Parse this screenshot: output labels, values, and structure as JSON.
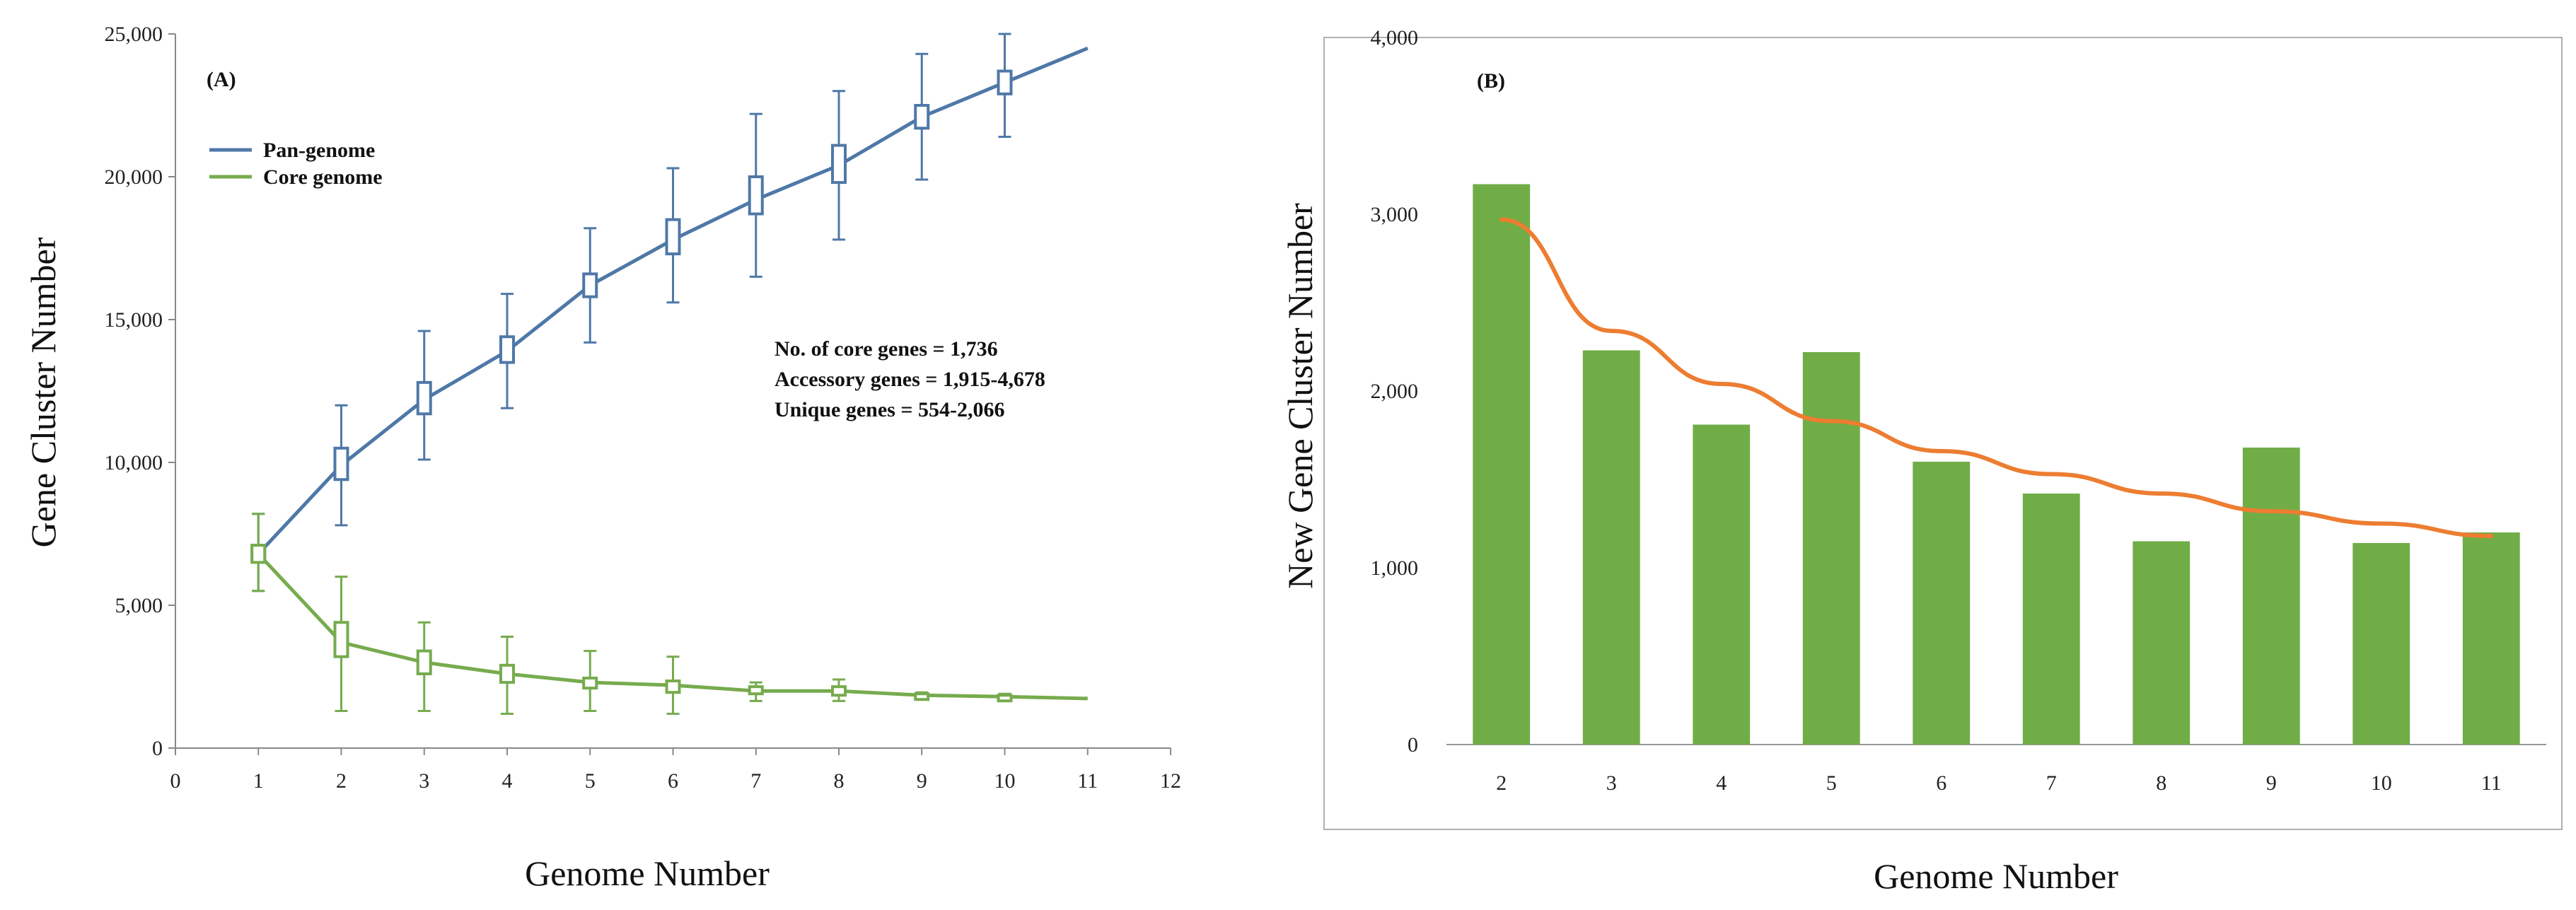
{
  "chart_data": [
    {
      "panel": "(A)",
      "type": "line",
      "title": "",
      "xlabel": "Genome Number",
      "ylabel": "Gene Cluster Number",
      "xlim": [
        0,
        12
      ],
      "ylim": [
        0,
        25000
      ],
      "x_ticks": [
        0,
        1,
        2,
        3,
        4,
        5,
        6,
        7,
        8,
        9,
        10,
        11,
        12
      ],
      "x_tick_labels": [
        "0",
        "1",
        "2",
        "3",
        "4",
        "5",
        "6",
        "7",
        "8",
        "9",
        "10",
        "11",
        "12"
      ],
      "y_ticks": [
        0,
        5000,
        10000,
        15000,
        20000,
        25000
      ],
      "y_tick_labels": [
        "0",
        "5,000",
        "10,000",
        "15,000",
        "20,000",
        "25,000"
      ],
      "x": [
        1,
        2,
        3,
        4,
        5,
        6,
        7,
        8,
        9,
        10,
        11
      ],
      "series": [
        {
          "name": "Pan-genome",
          "color": "#4f78a8",
          "values": [
            6800,
            9900,
            12200,
            13900,
            16200,
            17800,
            19200,
            20400,
            22100,
            23300,
            24500
          ],
          "box_low": [
            6600,
            9400,
            11700,
            13500,
            15800,
            17300,
            18700,
            19800,
            21700,
            22900,
            null
          ],
          "box_high": [
            7100,
            10500,
            12800,
            14400,
            16600,
            18500,
            20000,
            21100,
            22500,
            23700,
            null
          ],
          "whisker_low": [
            5500,
            7800,
            10100,
            11900,
            14200,
            15600,
            16500,
            17800,
            19900,
            21400,
            null
          ],
          "whisker_high": [
            8200,
            12000,
            14600,
            15900,
            18200,
            20300,
            22200,
            23000,
            24300,
            25000,
            null
          ]
        },
        {
          "name": "Core genome",
          "color": "#77ab4e",
          "values": [
            6800,
            3700,
            3000,
            2600,
            2300,
            2200,
            2000,
            2000,
            1850,
            1800,
            1736
          ],
          "box_low": [
            6500,
            3200,
            2600,
            2300,
            2100,
            1950,
            1900,
            1850,
            1800,
            1750,
            null
          ],
          "box_high": [
            7100,
            4400,
            3400,
            2900,
            2450,
            2350,
            2150,
            2150,
            1900,
            1850,
            null
          ],
          "whisker_low": [
            5500,
            1300,
            1300,
            1200,
            1300,
            1200,
            1650,
            1650,
            1750,
            1700,
            null
          ],
          "whisker_high": [
            8200,
            6000,
            4400,
            3900,
            3400,
            3200,
            2300,
            2400,
            1950,
            1900,
            null
          ]
        }
      ],
      "legend": [
        "Pan-genome",
        "Core genome"
      ],
      "annotations": [
        "No. of core genes = 1,736",
        "Accessory genes = 1,915-4,678",
        "Unique genes = 554-2,066"
      ]
    },
    {
      "panel": "(B)",
      "type": "bar",
      "title": "",
      "xlabel": "Genome Number",
      "ylabel": "New Gene Cluster Number",
      "ylim": [
        0,
        4000
      ],
      "y_ticks": [
        0,
        1000,
        2000,
        3000,
        4000
      ],
      "y_tick_labels": [
        "0",
        "1,000",
        "2,000",
        "3,000",
        "4,000"
      ],
      "categories": [
        "2",
        "3",
        "4",
        "5",
        "6",
        "7",
        "8",
        "9",
        "10",
        "11"
      ],
      "values": [
        3170,
        2230,
        1810,
        2220,
        1600,
        1420,
        1150,
        1680,
        1140,
        1200
      ],
      "bar_color": "#70ad47",
      "trendline": {
        "color": "#ed7d31",
        "values": [
          2970,
          2340,
          2040,
          1830,
          1660,
          1530,
          1420,
          1320,
          1250,
          1180
        ]
      }
    }
  ]
}
